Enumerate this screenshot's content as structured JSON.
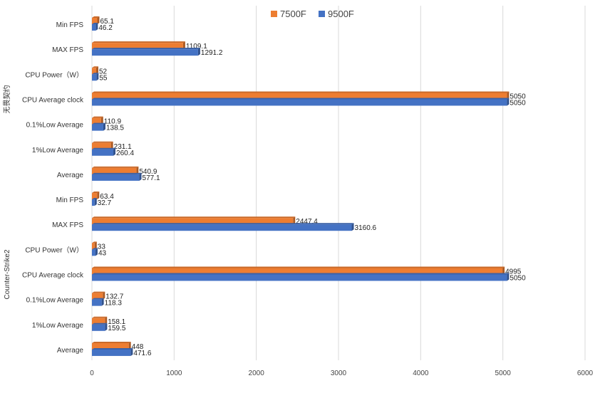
{
  "chart_data": {
    "type": "bar",
    "orientation": "horizontal",
    "title": "",
    "xlim": [
      0,
      6000
    ],
    "xticks": [
      0,
      1000,
      2000,
      3000,
      4000,
      5000,
      6000
    ],
    "grid": true,
    "legend_position": "top-center",
    "series": [
      {
        "name": "7500F",
        "color": "#ED7D31"
      },
      {
        "name": "9500F",
        "color": "#4472C4"
      }
    ],
    "groups": [
      {
        "name": "无畏契约",
        "categories": [
          {
            "label": "Min FPS",
            "values": [
              65.1,
              46.2
            ]
          },
          {
            "label": "MAX FPS",
            "values": [
              1109.1,
              1291.2
            ]
          },
          {
            "label": "CPU Power（W）",
            "values": [
              52,
              55
            ]
          },
          {
            "label": "CPU Average clock",
            "values": [
              5050,
              5050
            ]
          },
          {
            "label": "0.1%Low Average",
            "values": [
              110.9,
              138.5
            ]
          },
          {
            "label": "1%Low Average",
            "values": [
              231.1,
              260.4
            ]
          },
          {
            "label": "Average",
            "values": [
              540.9,
              577.1
            ]
          }
        ]
      },
      {
        "name": "Counter-Strike2",
        "categories": [
          {
            "label": "Min FPS",
            "values": [
              63.4,
              32.7
            ]
          },
          {
            "label": "MAX FPS",
            "values": [
              2447.4,
              3160.6
            ]
          },
          {
            "label": "CPU Power（W）",
            "values": [
              33,
              43
            ]
          },
          {
            "label": "CPU Average clock",
            "values": [
              4995,
              5050
            ]
          },
          {
            "label": "0.1%Low Average",
            "values": [
              132.7,
              118.3
            ]
          },
          {
            "label": "1%Low Average",
            "values": [
              158.1,
              159.5
            ]
          },
          {
            "label": "Average",
            "values": [
              448,
              471.6
            ]
          }
        ]
      }
    ]
  }
}
